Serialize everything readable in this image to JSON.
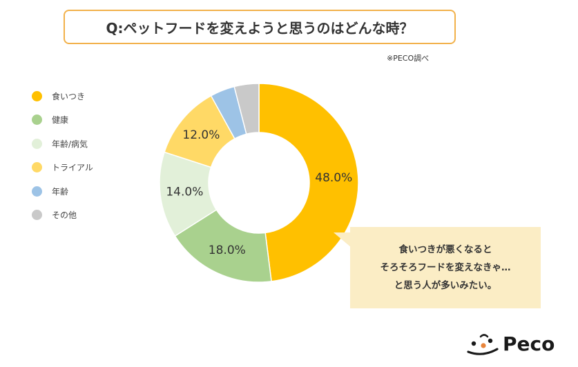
{
  "title": "Q:ペットフードを変えようと思うのはどんな時？",
  "source": "※PECO調べ",
  "callout": {
    "lines": [
      "食いつきが悪くなると",
      "そろそろフードを変えなきゃ…",
      "と思う人が多いみたい。"
    ]
  },
  "logo": {
    "text": "Peco"
  },
  "chart_data": {
    "type": "pie",
    "donut": true,
    "categories": [
      "食いつき",
      "健康",
      "年齢/病気",
      "トライアル",
      "年齢",
      "その他"
    ],
    "values": [
      48.0,
      18.0,
      14.0,
      12.0,
      4.0,
      4.0
    ],
    "data_labels": [
      "48.0%",
      "18.0%",
      "14.0%",
      "12.0%",
      "",
      ""
    ],
    "colors": [
      "#ffc000",
      "#a9d18e",
      "#e2f0d9",
      "#ffd966",
      "#9dc3e6",
      "#c9c9c9"
    ],
    "legend_position": "left"
  }
}
